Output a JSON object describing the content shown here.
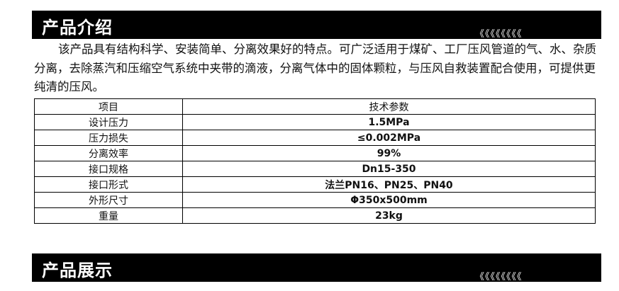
{
  "section1": {
    "title": "产品介绍",
    "chevrons": "《《《《《《《《"
  },
  "intro": "该产品具有结构科学、安装简单、分离效果好的特点。可广泛适用于煤矿、工厂压风管道的气、水、杂质分离，去除蒸汽和压缩空气系统中夹带的滴液，分离气体中的固体颗粒，与压风自救装置配合使用，可提供更纯清的压风。",
  "table": {
    "headers": [
      "项目",
      "技术参数"
    ],
    "rows": [
      [
        "设计压力",
        "1.5MPa"
      ],
      [
        "压力损失",
        "≤0.002MPa"
      ],
      [
        "分离效率",
        "99%"
      ],
      [
        "接口规格",
        "Dn15-350"
      ],
      [
        "接口形式",
        "法兰PN16、PN25、PN40"
      ],
      [
        "外形尺寸",
        "Φ350x500mm"
      ],
      [
        "重量",
        "23kg"
      ]
    ]
  },
  "section2": {
    "title": "产品展示",
    "chevrons": "《《《《《《《《"
  }
}
